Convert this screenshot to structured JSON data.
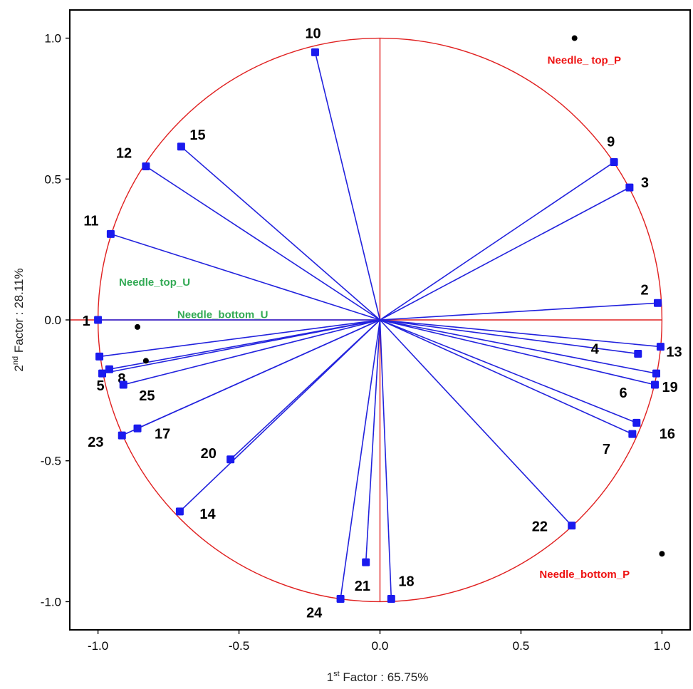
{
  "chart_data": {
    "type": "scatter",
    "subtype": "correlation-circle",
    "title": "",
    "xlabel_prefix": "1",
    "xlabel_sup": "st",
    "xlabel_rest": " Factor : 65.75%",
    "ylabel_prefix": "2",
    "ylabel_sup": "nd",
    "ylabel_rest": " Factor : 28.11%",
    "xlim": [
      -1.1,
      1.1
    ],
    "ylim": [
      -1.1,
      1.1
    ],
    "xticks": [
      -1.0,
      -0.5,
      0.0,
      0.5,
      1.0
    ],
    "yticks": [
      -1.0,
      -0.5,
      0.0,
      0.5,
      1.0
    ],
    "xtick_labels": [
      "-1.0",
      "-0.5",
      "0.0",
      "0.5",
      "1.0"
    ],
    "ytick_labels": [
      "-1.0",
      "-0.5",
      "0.0",
      "0.5",
      "1.0"
    ],
    "grid": false,
    "unit_circle": true,
    "colors": {
      "vector": "#2222dd",
      "point": "#1a1aee",
      "circle": "#e02020",
      "axis_cross": "#e02020",
      "supplementary_P": "#ee1111",
      "supplementary_U": "#33aa55",
      "supplementary_point": "#000000"
    },
    "variables": [
      {
        "label": "1",
        "x": -1.0,
        "y": 0.0
      },
      {
        "label": "2",
        "x": 0.985,
        "y": 0.06
      },
      {
        "label": "3",
        "x": 0.885,
        "y": 0.47
      },
      {
        "label": "4",
        "x": 0.915,
        "y": -0.12
      },
      {
        "label": "5",
        "x": -0.985,
        "y": -0.19
      },
      {
        "label": "6",
        "x": 0.975,
        "y": -0.23
      },
      {
        "label": "7",
        "x": 0.895,
        "y": -0.405
      },
      {
        "label": "8",
        "x": -0.96,
        "y": -0.175
      },
      {
        "label": "9",
        "x": 0.83,
        "y": 0.56
      },
      {
        "label": "10",
        "x": -0.23,
        "y": 0.95
      },
      {
        "label": "11",
        "x": -0.955,
        "y": 0.305
      },
      {
        "label": "12",
        "x": -0.83,
        "y": 0.545
      },
      {
        "label": "13",
        "x": 0.995,
        "y": -0.095
      },
      {
        "label": "14",
        "x": -0.71,
        "y": -0.68
      },
      {
        "label": "15",
        "x": -0.705,
        "y": 0.615
      },
      {
        "label": "16",
        "x": 0.91,
        "y": -0.365
      },
      {
        "label": "17",
        "x": -0.86,
        "y": -0.385
      },
      {
        "label": "18",
        "x": 0.04,
        "y": -0.99
      },
      {
        "label": "19",
        "x": 0.98,
        "y": -0.19
      },
      {
        "label": "20",
        "x": -0.53,
        "y": -0.495
      },
      {
        "label": "21",
        "x": -0.05,
        "y": -0.86
      },
      {
        "label": "22",
        "x": 0.68,
        "y": -0.73
      },
      {
        "label": "23",
        "x": -0.915,
        "y": -0.41
      },
      {
        "label": "24",
        "x": -0.14,
        "y": -0.99
      },
      {
        "label": "25",
        "x": -0.91,
        "y": -0.23
      },
      {
        "label": "",
        "x": -0.995,
        "y": -0.13
      }
    ],
    "supplementary": [
      {
        "label": "Needle_ top_P",
        "x": 0.69,
        "y": 1.0,
        "group": "P"
      },
      {
        "label": "Needle_bottom_P",
        "x": 1.0,
        "y": -0.83,
        "group": "P"
      },
      {
        "label": "Needle_top_U",
        "x": -0.86,
        "y": -0.025,
        "group": "U"
      },
      {
        "label": "Needle_bottom_U",
        "x": -0.83,
        "y": -0.145,
        "group": "U"
      }
    ]
  }
}
